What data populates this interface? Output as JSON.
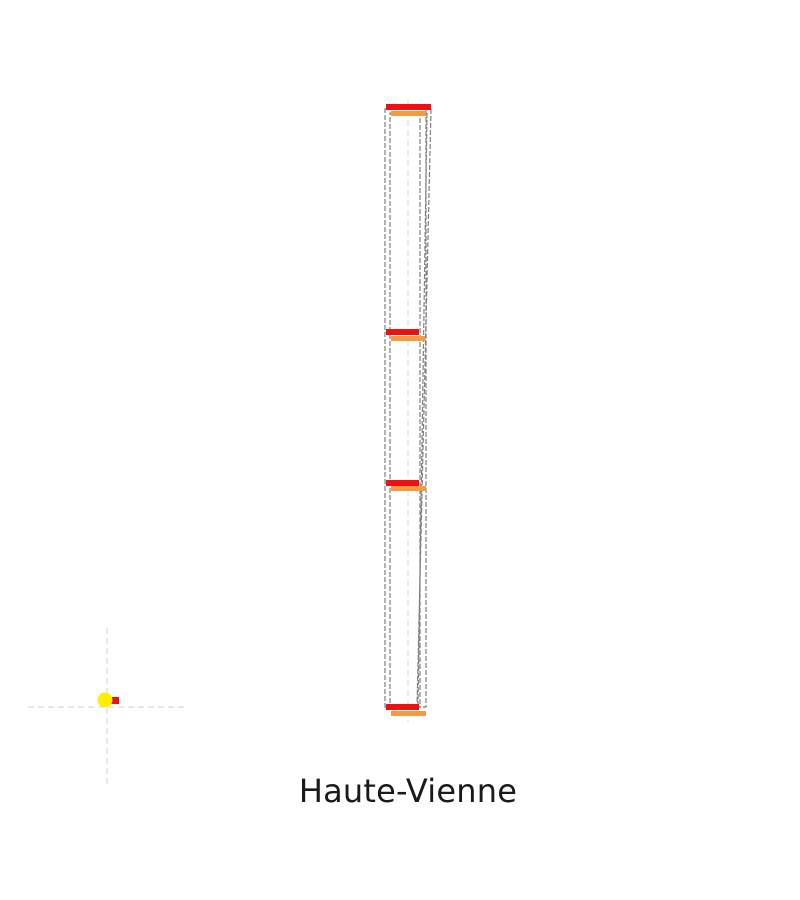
{
  "caption": "Haute-Vienne",
  "colors": {
    "background": "#ffffff",
    "outline": "#808080",
    "guide": "#d0d0d0",
    "bar_primary": "#ee1111",
    "bar_secondary": "#f59a40",
    "marker_main": "#ffee00",
    "marker_accent": "#ee1111",
    "caption_text": "#1a1a1a"
  },
  "diagram": {
    "levels": 4,
    "series": [
      "primary",
      "secondary"
    ]
  }
}
